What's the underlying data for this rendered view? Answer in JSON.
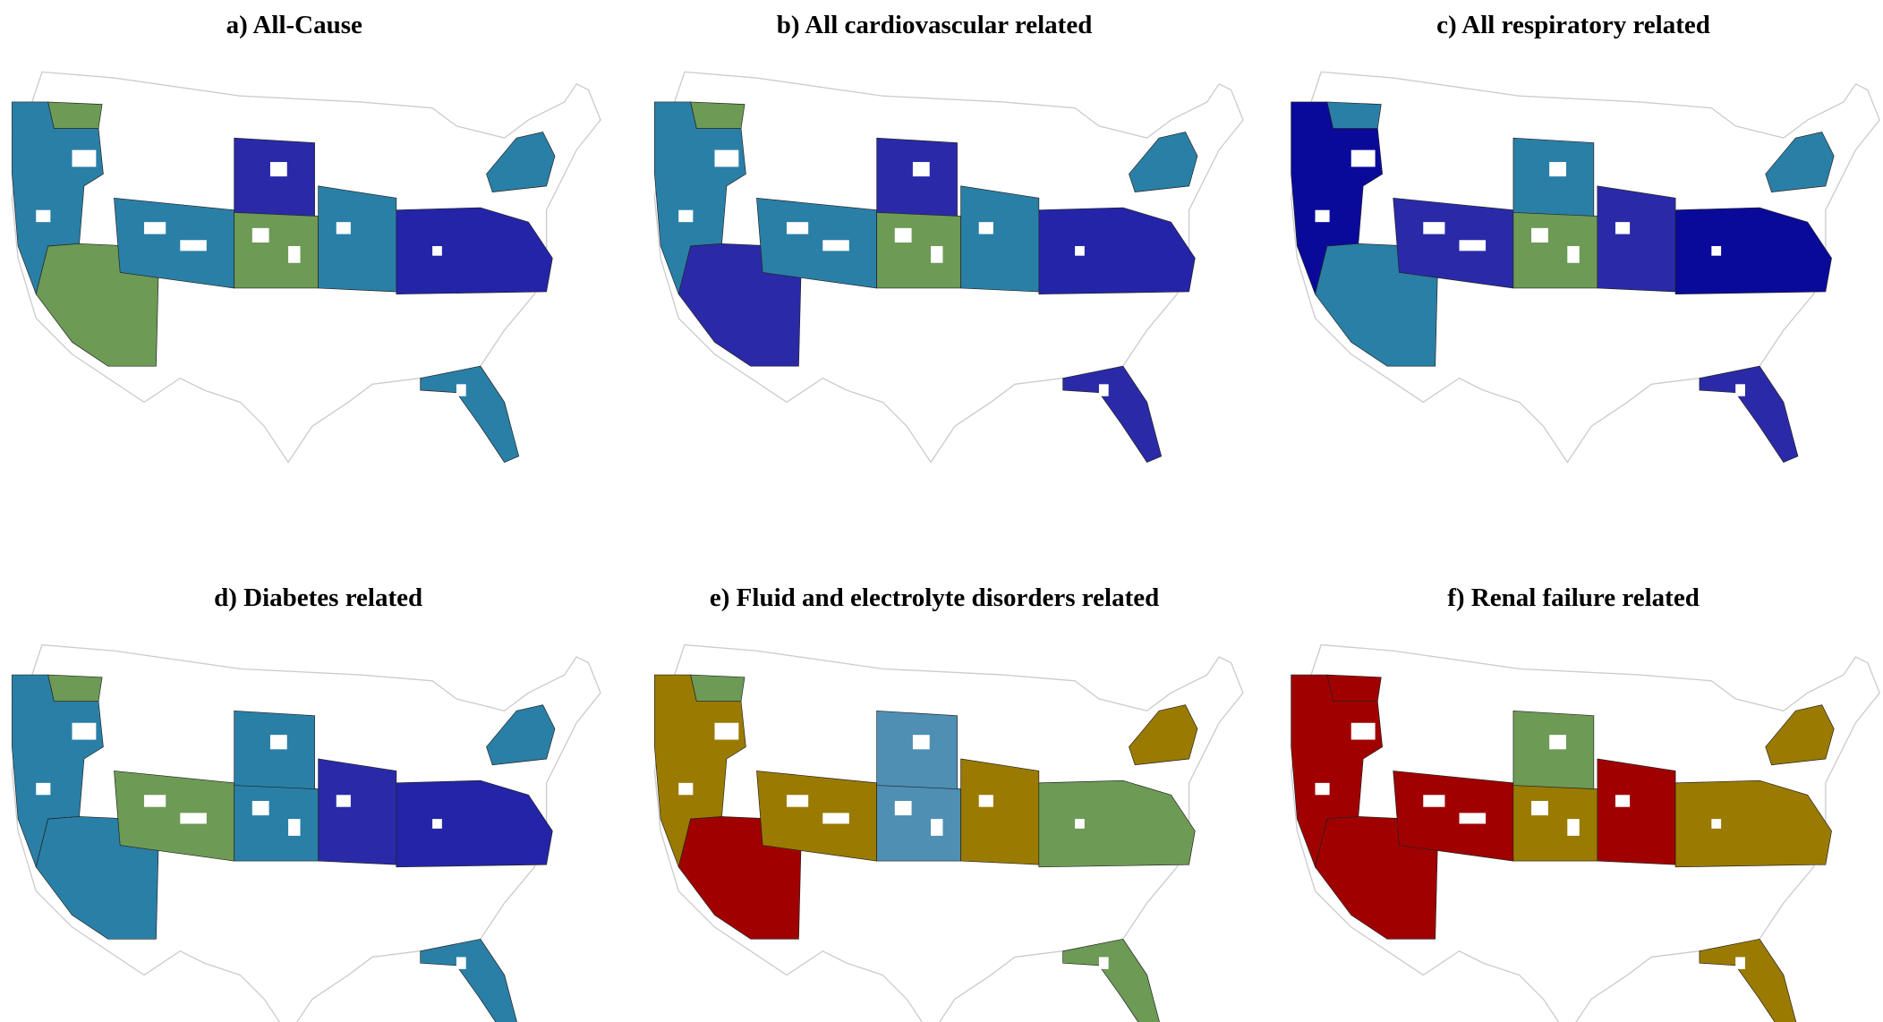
{
  "panels": [
    {
      "title": "a) All-Cause"
    },
    {
      "title": "b) All cardiovascular related"
    },
    {
      "title": "c) All respiratory related"
    },
    {
      "title": "d) Diabetes related"
    },
    {
      "title": "e) Fluid and electrolyte disorders related"
    },
    {
      "title": "f) Renal failure related"
    }
  ]
}
